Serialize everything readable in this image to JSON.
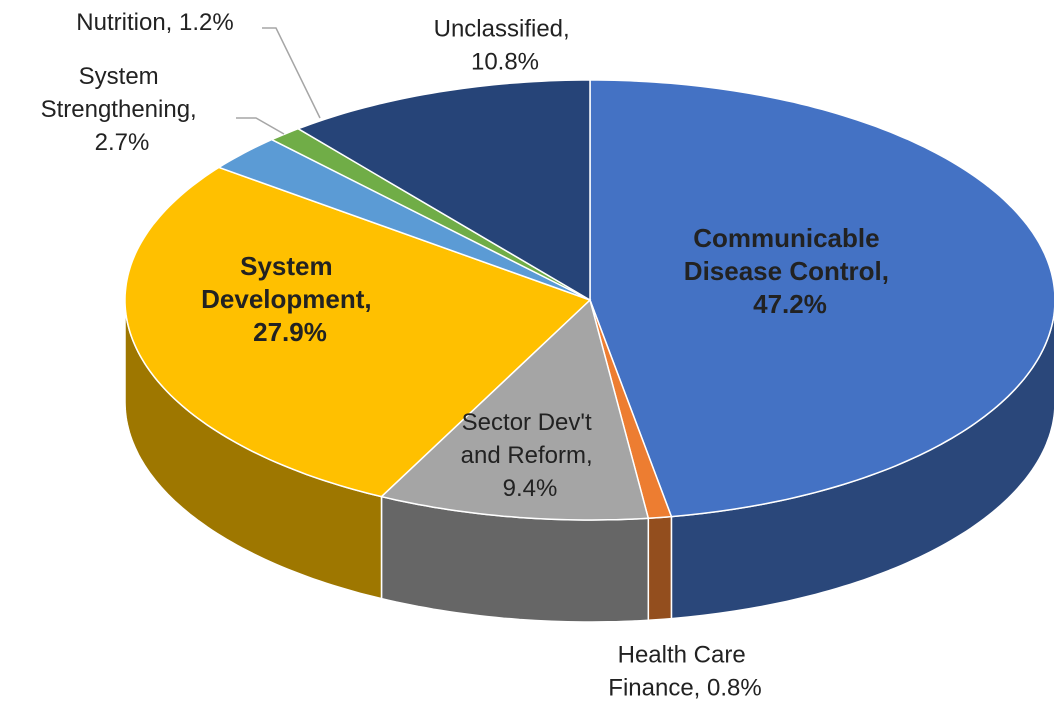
{
  "chart_data": {
    "type": "pie",
    "values": [
      47.2,
      0.8,
      9.4,
      27.9,
      2.7,
      1.2,
      10.8
    ],
    "value_labels": [
      "Communicable Disease Control, 47.2%",
      "Health Care Finance, 0.8%",
      "Sector Dev't and Reform, 9.4%",
      "System Development, 27.9%",
      "System Strengthening, 2.7%",
      "Nutrition, 1.2%",
      "Unclassified, 10.8%"
    ],
    "colors": [
      "#4472c4",
      "#ed7d31",
      "#a5a5a5",
      "#ffc000",
      "#5b9bd5",
      "#70ad47",
      "#264478"
    ]
  }
}
